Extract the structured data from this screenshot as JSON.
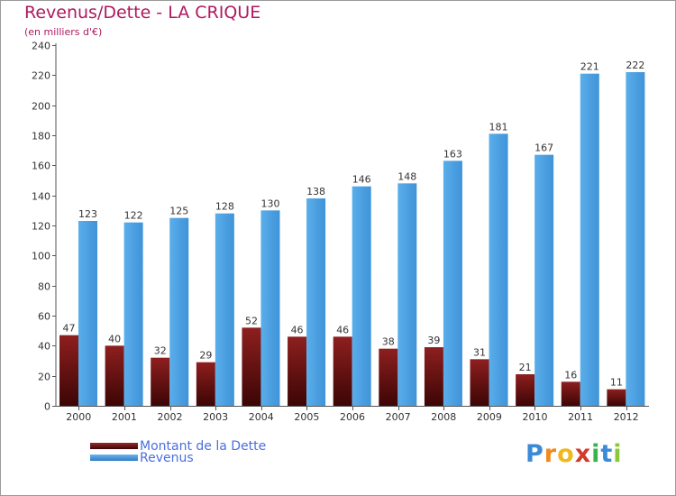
{
  "chart_title": "Revenus/Dette - LA CRIQUE",
  "chart_subtitle": "(en milliers d'€)",
  "legend": {
    "debt_label": "Montant de la Dette",
    "revenue_label": "Revenus"
  },
  "logo": {
    "letters": [
      "P",
      "r",
      "o",
      "x",
      "i",
      "t",
      "i"
    ],
    "colors": [
      "#3b8ad8",
      "#f08a1a",
      "#f0b81a",
      "#d23a2a",
      "#3bb24a",
      "#3b8ad8",
      "#8ac83a"
    ]
  },
  "colors": {
    "debt": "#7a1414",
    "revenue": "#4a9fe0",
    "title": "#b01960",
    "legend_text": "#4a6fe0"
  },
  "chart_data": {
    "type": "bar",
    "title": "Revenus/Dette - LA CRIQUE",
    "subtitle": "(en milliers d'€)",
    "categories": [
      "2000",
      "2001",
      "2002",
      "2003",
      "2004",
      "2005",
      "2006",
      "2007",
      "2008",
      "2009",
      "2010",
      "2011",
      "2012"
    ],
    "series": [
      {
        "name": "Montant de la Dette",
        "values": [
          47,
          40,
          32,
          29,
          52,
          46,
          46,
          38,
          39,
          31,
          21,
          16,
          11
        ]
      },
      {
        "name": "Revenus",
        "values": [
          123,
          122,
          125,
          128,
          130,
          138,
          146,
          148,
          163,
          181,
          167,
          221,
          222
        ]
      }
    ],
    "yticks": [
      0,
      20,
      40,
      60,
      80,
      100,
      120,
      140,
      160,
      180,
      200,
      220,
      240
    ],
    "ylim": [
      0,
      240
    ],
    "grid": false,
    "legend_position": "bottom-left"
  }
}
